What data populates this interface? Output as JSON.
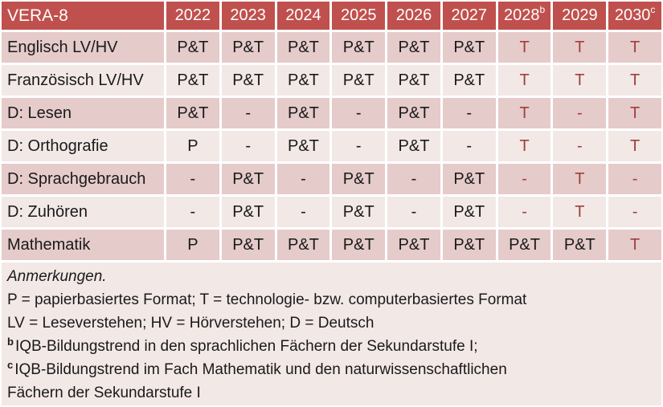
{
  "colors": {
    "header_bg": "#C0504D",
    "header_text": "#FFFFFF",
    "band_dark": "#E5CBCA",
    "band_light": "#F2E8E6",
    "accent_red": "#9E3F3D",
    "text": "#1A1A1A"
  },
  "table": {
    "title": "VERA-8",
    "columns": [
      {
        "label": "2022",
        "sup": ""
      },
      {
        "label": "2023",
        "sup": ""
      },
      {
        "label": "2024",
        "sup": ""
      },
      {
        "label": "2025",
        "sup": ""
      },
      {
        "label": "2026",
        "sup": ""
      },
      {
        "label": "2027",
        "sup": ""
      },
      {
        "label": "2028",
        "sup": "b"
      },
      {
        "label": "2029",
        "sup": ""
      },
      {
        "label": "2030",
        "sup": "c"
      }
    ],
    "rows": [
      {
        "label": "Englisch LV/HV",
        "cells": [
          {
            "text": "P&T",
            "red": false
          },
          {
            "text": "P&T",
            "red": false
          },
          {
            "text": "P&T",
            "red": false
          },
          {
            "text": "P&T",
            "red": false
          },
          {
            "text": "P&T",
            "red": false
          },
          {
            "text": "P&T",
            "red": false
          },
          {
            "text": "T",
            "red": true
          },
          {
            "text": "T",
            "red": true
          },
          {
            "text": "T",
            "red": true
          }
        ]
      },
      {
        "label": "Französisch LV/HV",
        "cells": [
          {
            "text": "P&T",
            "red": false
          },
          {
            "text": "P&T",
            "red": false
          },
          {
            "text": "P&T",
            "red": false
          },
          {
            "text": "P&T",
            "red": false
          },
          {
            "text": "P&T",
            "red": false
          },
          {
            "text": "P&T",
            "red": false
          },
          {
            "text": "T",
            "red": true
          },
          {
            "text": "T",
            "red": true
          },
          {
            "text": "T",
            "red": true
          }
        ]
      },
      {
        "label": "D: Lesen",
        "cells": [
          {
            "text": "P&T",
            "red": false
          },
          {
            "text": "-",
            "red": false
          },
          {
            "text": "P&T",
            "red": false
          },
          {
            "text": "-",
            "red": false
          },
          {
            "text": "P&T",
            "red": false
          },
          {
            "text": "-",
            "red": false
          },
          {
            "text": "T",
            "red": true
          },
          {
            "text": "-",
            "red": true
          },
          {
            "text": "T",
            "red": true
          }
        ]
      },
      {
        "label": "D: Orthografie",
        "cells": [
          {
            "text": "P",
            "red": false
          },
          {
            "text": "-",
            "red": false
          },
          {
            "text": "P&T",
            "red": false
          },
          {
            "text": "-",
            "red": false
          },
          {
            "text": "P&T",
            "red": false
          },
          {
            "text": "-",
            "red": false
          },
          {
            "text": "T",
            "red": true
          },
          {
            "text": "-",
            "red": true
          },
          {
            "text": "T",
            "red": true
          }
        ]
      },
      {
        "label": "D: Sprachgebrauch",
        "cells": [
          {
            "text": "-",
            "red": false
          },
          {
            "text": "P&T",
            "red": false
          },
          {
            "text": "-",
            "red": false
          },
          {
            "text": "P&T",
            "red": false
          },
          {
            "text": "-",
            "red": false
          },
          {
            "text": "P&T",
            "red": false
          },
          {
            "text": "-",
            "red": true
          },
          {
            "text": "T",
            "red": true
          },
          {
            "text": "-",
            "red": true
          }
        ]
      },
      {
        "label": "D: Zuhören",
        "cells": [
          {
            "text": "-",
            "red": false
          },
          {
            "text": "P&T",
            "red": false
          },
          {
            "text": "-",
            "red": false
          },
          {
            "text": "P&T",
            "red": false
          },
          {
            "text": "-",
            "red": false
          },
          {
            "text": "P&T",
            "red": false
          },
          {
            "text": "-",
            "red": true
          },
          {
            "text": "T",
            "red": true
          },
          {
            "text": "-",
            "red": true
          }
        ]
      },
      {
        "label": "Mathematik",
        "cells": [
          {
            "text": "P",
            "red": false
          },
          {
            "text": "P&T",
            "red": false
          },
          {
            "text": "P&T",
            "red": false
          },
          {
            "text": "P&T",
            "red": false
          },
          {
            "text": "P&T",
            "red": false
          },
          {
            "text": "P&T",
            "red": false
          },
          {
            "text": "P&T",
            "red": false
          },
          {
            "text": "P&T",
            "red": false
          },
          {
            "text": "T",
            "red": true
          }
        ]
      }
    ]
  },
  "notes": {
    "heading": "Anmerkungen.",
    "lines": [
      {
        "sup": "",
        "text": "P = papierbasiertes Format; T = technologie- bzw. computerbasiertes Format"
      },
      {
        "sup": "",
        "text": "LV = Leseverstehen; HV = Hörverstehen; D = Deutsch"
      },
      {
        "sup": "b",
        "text": "IQB-Bildungstrend in den sprachlichen Fächern der Sekundarstufe I;"
      },
      {
        "sup": "c",
        "text": "IQB-Bildungstrend im Fach Mathematik und den naturwissenschaftlichen"
      },
      {
        "sup": "",
        "text": "Fächern der Sekundarstufe I"
      }
    ]
  }
}
